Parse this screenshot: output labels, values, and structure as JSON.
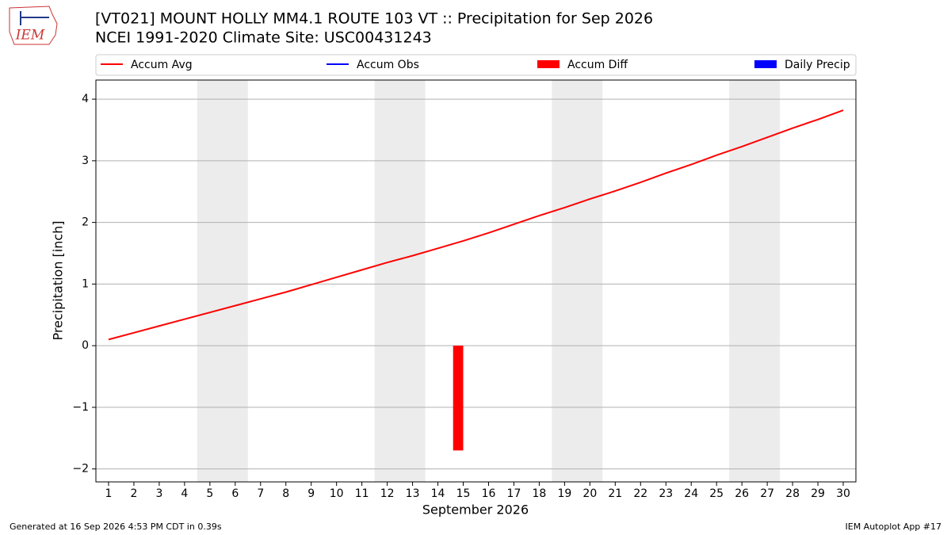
{
  "logo": "IEM",
  "chart_data": {
    "type": "combo",
    "title": "[VT021] MOUNT HOLLY MM4.1 ROUTE 103  VT :: Precipitation for Sep 2026",
    "subtitle": "NCEI 1991-2020 Climate Site: USC00431243",
    "xlabel": "September 2026",
    "ylabel": "Precipitation [inch]",
    "x": [
      1,
      2,
      3,
      4,
      5,
      6,
      7,
      8,
      9,
      10,
      11,
      12,
      13,
      14,
      15,
      16,
      17,
      18,
      19,
      20,
      21,
      22,
      23,
      24,
      25,
      26,
      27,
      28,
      29,
      30
    ],
    "xlim": [
      0.5,
      30.5
    ],
    "xticks": [
      1,
      2,
      3,
      4,
      5,
      6,
      7,
      8,
      9,
      10,
      11,
      12,
      13,
      14,
      15,
      16,
      17,
      18,
      19,
      20,
      21,
      22,
      23,
      24,
      25,
      26,
      27,
      28,
      29,
      30
    ],
    "ylim": [
      -2.21,
      4.31
    ],
    "yticks": [
      {
        "value": -2,
        "label": "−2"
      },
      {
        "value": -1,
        "label": "−1"
      },
      0,
      1,
      2,
      3,
      4
    ],
    "grid": true,
    "shaded_spans": [
      [
        4.5,
        6.5
      ],
      [
        11.5,
        13.5
      ],
      [
        18.5,
        20.5
      ],
      [
        25.5,
        27.5
      ]
    ],
    "shade_color": "#ececec",
    "legend_position": "top",
    "series": [
      {
        "name": "Accum Avg",
        "type": "line",
        "color": "#ff0000",
        "values": [
          0.1,
          0.21,
          0.32,
          0.43,
          0.54,
          0.65,
          0.76,
          0.87,
          0.99,
          1.11,
          1.23,
          1.35,
          1.46,
          1.58,
          1.7,
          1.83,
          1.97,
          2.11,
          2.24,
          2.38,
          2.51,
          2.65,
          2.8,
          2.94,
          3.09,
          3.23,
          3.38,
          3.53,
          3.67,
          3.82
        ]
      },
      {
        "name": "Accum Obs",
        "type": "line",
        "color": "#0000ff",
        "values": [
          null,
          null,
          null,
          null,
          null,
          null,
          null,
          null,
          null,
          null,
          null,
          null,
          null,
          null,
          null,
          null,
          null,
          null,
          null,
          null,
          null,
          null,
          null,
          null,
          null,
          null,
          null,
          null,
          null,
          null
        ]
      },
      {
        "name": "Accum Diff",
        "type": "bar",
        "color": "#ff0000",
        "values": [
          null,
          null,
          null,
          null,
          null,
          null,
          null,
          null,
          null,
          null,
          null,
          null,
          null,
          null,
          -1.7,
          null,
          null,
          null,
          null,
          null,
          null,
          null,
          null,
          null,
          null,
          null,
          null,
          null,
          null,
          null
        ]
      },
      {
        "name": "Daily Precip",
        "type": "bar",
        "color": "#0000ff",
        "values": [
          null,
          null,
          null,
          null,
          null,
          null,
          null,
          null,
          null,
          null,
          null,
          null,
          null,
          null,
          null,
          null,
          null,
          null,
          null,
          null,
          null,
          null,
          null,
          null,
          null,
          null,
          null,
          null,
          null,
          null
        ]
      }
    ]
  },
  "footer": {
    "left": "Generated at 16 Sep 2026 4:53 PM CDT in 0.39s",
    "right": "IEM Autoplot App #17"
  }
}
